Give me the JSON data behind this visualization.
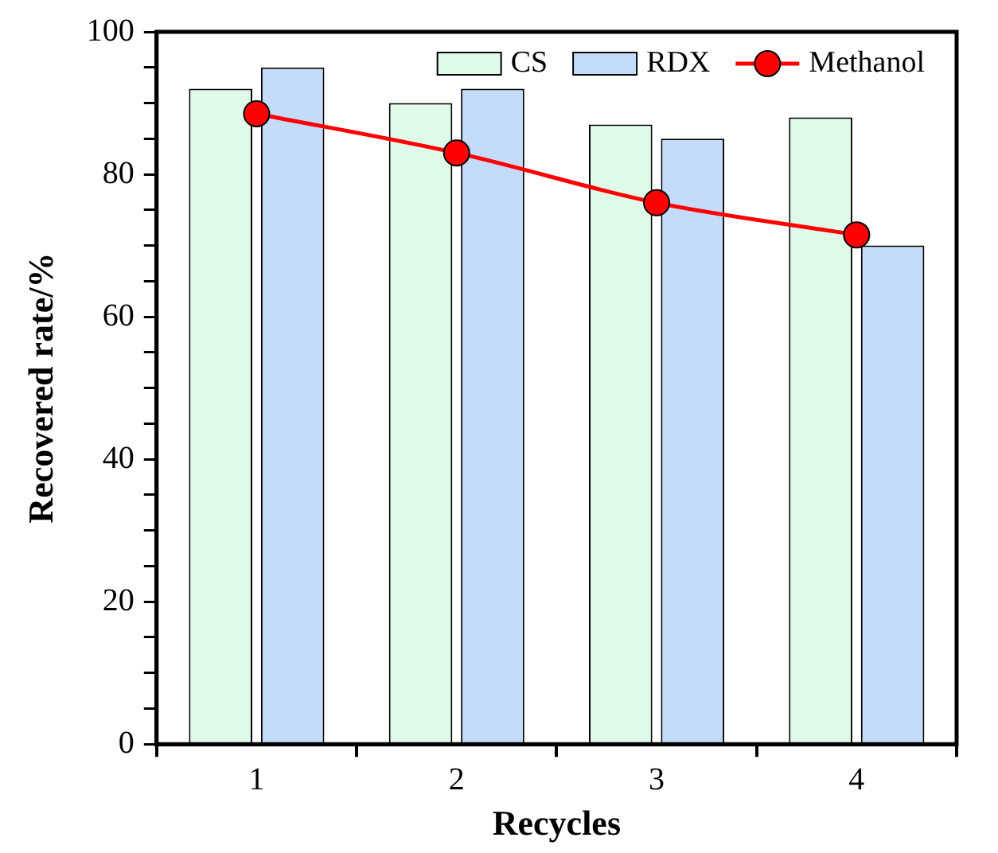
{
  "chart_data": {
    "type": "bar",
    "xlabel": "Recycles",
    "ylabel": "Recovered rate/%",
    "categories": [
      "1",
      "2",
      "3",
      "4"
    ],
    "series": [
      {
        "name": "CS",
        "color": "#e0faea",
        "values": [
          92,
          90,
          87,
          88
        ]
      },
      {
        "name": "RDX",
        "color": "#c4dcfa",
        "values": [
          95,
          92,
          85,
          70
        ]
      },
      {
        "name": "Methanol",
        "type": "line",
        "color": "#ff0000",
        "marker": "circle",
        "values": [
          88.5,
          83,
          76,
          71.5
        ]
      }
    ],
    "ylim": [
      0,
      100
    ],
    "yticks": [
      0,
      {
        "value": 5,
        "label": null
      },
      {
        "value": 10,
        "label": null
      },
      {
        "value": 15,
        "label": null
      },
      20,
      {
        "value": 25,
        "label": null
      },
      {
        "value": 30,
        "label": null
      },
      {
        "value": 35,
        "label": null
      },
      40,
      {
        "value": 45,
        "label": null
      },
      {
        "value": 50,
        "label": null
      },
      {
        "value": 55,
        "label": null
      },
      60,
      {
        "value": 65,
        "label": null
      },
      {
        "value": 70,
        "label": null
      },
      {
        "value": 75,
        "label": null
      },
      80,
      {
        "value": 85,
        "label": null
      },
      {
        "value": 90,
        "label": null
      },
      {
        "value": 95,
        "label": null
      },
      100
    ],
    "grid": false,
    "legend": "top right"
  }
}
